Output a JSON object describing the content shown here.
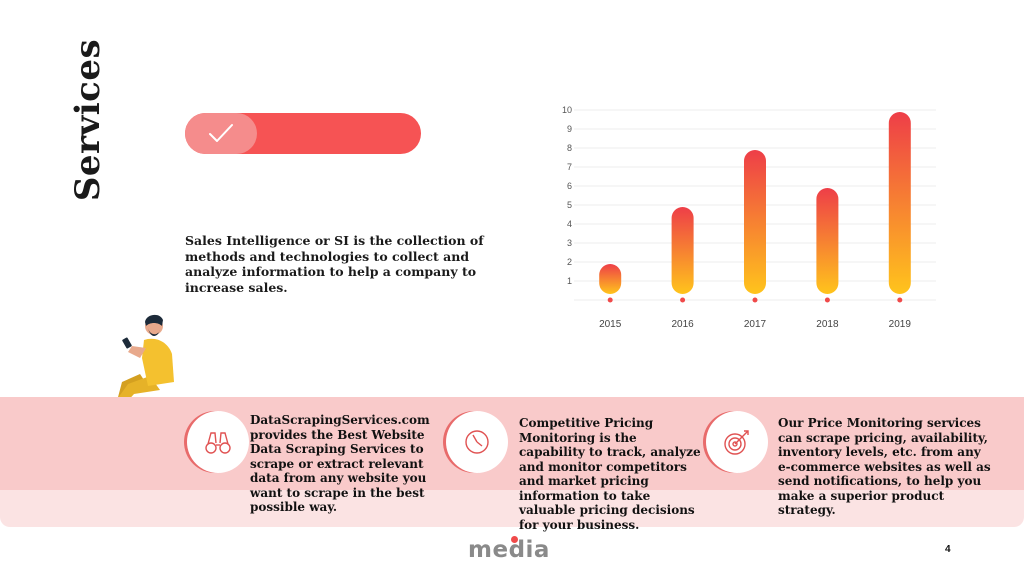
{
  "slide": {
    "title": "Services",
    "intro": "Sales Intelligence or SI is the collection of methods and technologies to collect and analyze information to help a company to increase sales.",
    "page_number": "4",
    "logo_text": "media"
  },
  "features": [
    {
      "icon": "binoculars-icon",
      "text": "DataScrapingServices.com provides the Best Website Data Scraping Services to scrape or extract relevant data from any website you want to scrape in the best possible way."
    },
    {
      "icon": "clock-icon",
      "text": "Competitive Pricing Monitoring is the capability to track, analyze and monitor competitors and market pricing information to take valuable pricing decisions for your business."
    },
    {
      "icon": "target-icon",
      "text": "Our Price Monitoring services can scrape pricing, availability, inventory levels, etc. from any e-commerce websites as well as send notifications, to help you make a superior product strategy."
    }
  ],
  "colors": {
    "accent": "#f65354",
    "accent_light": "#f58c8c",
    "band": "#f9caca",
    "band_light": "#fbe3e3",
    "bar_top": "#ee3e48",
    "bar_bottom": "#ffc41c"
  },
  "chart_data": {
    "type": "bar",
    "categories": [
      "2015",
      "2016",
      "2017",
      "2018",
      "2019"
    ],
    "values": [
      2,
      5,
      8,
      6,
      10
    ],
    "y_ticks": [
      "1",
      "2",
      "3",
      "4",
      "5",
      "6",
      "7",
      "8",
      "9",
      "10"
    ],
    "ylim": [
      0,
      10
    ],
    "grid": true,
    "title": "",
    "xlabel": "",
    "ylabel": ""
  }
}
